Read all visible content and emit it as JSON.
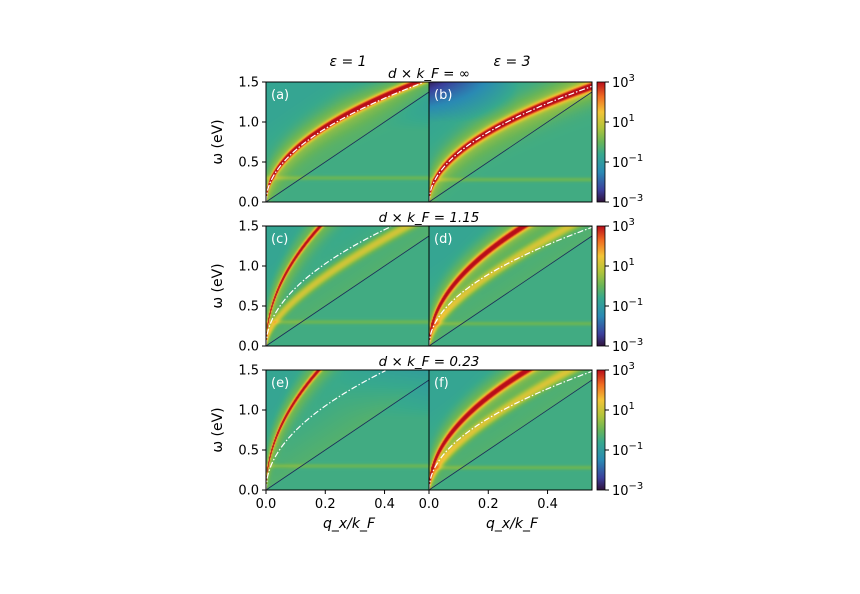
{
  "figure": {
    "column_titles": [
      "ε = 1",
      "ε = 3"
    ],
    "row_titles": [
      "d × k_F = ∞",
      "d × k_F = 1.15",
      "d × k_F = 0.23"
    ],
    "ylabel": "ω (eV)",
    "xlabel": "q_x/k_F",
    "colorbar_ticks": [
      "10^3",
      "10^1",
      "10^-1",
      "10^-3"
    ]
  },
  "chart_data": [
    {
      "type": "heatmap",
      "panel": "(a)",
      "title": "d × k_F = ∞, ε = 1",
      "xlabel": "",
      "ylabel": "ω (eV)",
      "xlim": [
        0.0,
        0.55
      ],
      "ylim": [
        0.0,
        1.5
      ],
      "x_ticks": [],
      "y_ticks": [
        "0.0",
        "0.5",
        "1.0",
        "1.5"
      ],
      "colormap": "jet",
      "colorbar": {
        "scale": "log",
        "range": [
          0.001,
          1000
        ],
        "ticks": [
          "10^-3",
          "10^-1",
          "10^1",
          "10^3"
        ]
      },
      "features": {
        "plasmon_coef": 2.1,
        "plasmon_width": 0.035,
        "model_coef": 2.05,
        "interband_slope": 2.5,
        "flat_mode_ev": 0.3,
        "low_right_freq": true
      }
    },
    {
      "type": "heatmap",
      "panel": "(b)",
      "title": "d × k_F = ∞, ε = 3",
      "xlabel": "",
      "ylabel": "",
      "xlim": [
        0.0,
        0.55
      ],
      "ylim": [
        0.0,
        1.5
      ],
      "x_ticks": [],
      "y_ticks": [],
      "colormap": "jet",
      "colorbar": {
        "scale": "log",
        "range": [
          0.001,
          1000
        ],
        "ticks": [
          "10^-3",
          "10^-1",
          "10^1",
          "10^3"
        ]
      },
      "features": {
        "plasmon_coef": 1.95,
        "plasmon_width": 0.04,
        "model_coef": 1.95,
        "interband_slope": 2.5,
        "flat_mode_ev": 0.28,
        "low_upper_left": true
      }
    },
    {
      "type": "heatmap",
      "panel": "(c)",
      "title": "d × k_F = 1.15, ε = 1",
      "xlabel": "",
      "ylabel": "ω (eV)",
      "xlim": [
        0.0,
        0.55
      ],
      "ylim": [
        0.0,
        1.5
      ],
      "x_ticks": [],
      "y_ticks": [
        "0.0",
        "0.5",
        "1.0",
        "1.5"
      ],
      "colormap": "jet",
      "colorbar": {
        "scale": "log",
        "range": [
          0.001,
          1000
        ],
        "ticks": [
          "10^-3",
          "10^-1",
          "10^1",
          "10^3"
        ]
      },
      "features": {
        "plasmon_coef": 3.5,
        "plasmon_width": 0.03,
        "model_coef": 2.3,
        "interband_slope": 2.5,
        "second_branch": true,
        "flat_mode_ev": 0.3
      }
    },
    {
      "type": "heatmap",
      "panel": "(d)",
      "title": "d × k_F = 1.15, ε = 3",
      "xlabel": "",
      "ylabel": "",
      "xlim": [
        0.0,
        0.55
      ],
      "ylim": [
        0.0,
        1.5
      ],
      "x_ticks": [],
      "y_ticks": [],
      "colormap": "jet",
      "colorbar": {
        "scale": "log",
        "range": [
          0.001,
          1000
        ],
        "ticks": [
          "10^-3",
          "10^-1",
          "10^1",
          "10^3"
        ]
      },
      "features": {
        "plasmon_coef": 2.65,
        "plasmon_width": 0.04,
        "model_coef": 2.0,
        "interband_slope": 2.5,
        "second_branch": true,
        "flat_mode_ev": 0.28
      }
    },
    {
      "type": "heatmap",
      "panel": "(e)",
      "title": "d × k_F = 0.23, ε = 1",
      "xlabel": "q_x/k_F",
      "ylabel": "ω (eV)",
      "xlim": [
        0.0,
        0.55
      ],
      "ylim": [
        0.0,
        1.5
      ],
      "x_ticks": [
        "0.0",
        "0.2",
        "0.4"
      ],
      "y_ticks": [
        "0.0",
        "0.5",
        "1.0",
        "1.5"
      ],
      "colormap": "jet",
      "colorbar": {
        "scale": "log",
        "range": [
          0.001,
          1000
        ],
        "ticks": [
          "10^-3",
          "10^-1",
          "10^1",
          "10^3"
        ]
      },
      "features": {
        "plasmon_coef": 3.55,
        "plasmon_width": 0.03,
        "model_coef": 2.35,
        "interband_slope": 2.5,
        "flat_mode_ev": 0.3,
        "low_right_freq": true
      }
    },
    {
      "type": "heatmap",
      "panel": "(f)",
      "title": "d × k_F = 0.23, ε = 3",
      "xlabel": "q_x/k_F",
      "ylabel": "",
      "xlim": [
        0.0,
        0.55
      ],
      "ylim": [
        0.0,
        1.5
      ],
      "x_ticks": [
        "0.0",
        "0.2",
        "0.4"
      ],
      "y_ticks": [],
      "colormap": "jet",
      "colorbar": {
        "scale": "log",
        "range": [
          0.001,
          1000
        ],
        "ticks": [
          "10^-3",
          "10^-1",
          "10^1",
          "10^3"
        ]
      },
      "features": {
        "plasmon_coef": 2.6,
        "plasmon_width": 0.04,
        "model_coef": 2.0,
        "interband_slope": 2.5,
        "second_branch": true,
        "flat_mode_ev": 0.28
      }
    }
  ]
}
